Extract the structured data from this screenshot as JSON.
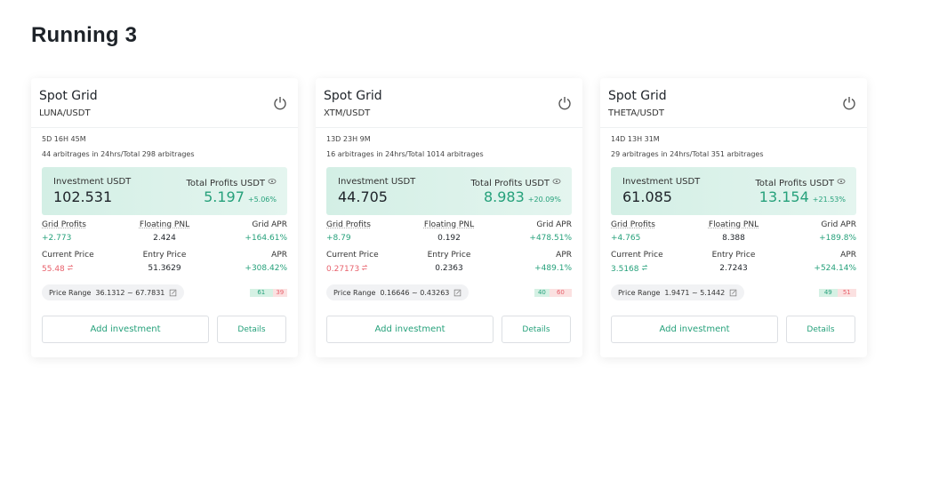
{
  "header": {
    "title": "Running 3"
  },
  "labels": {
    "investment": "Investment USDT",
    "total_profits": "Total Profits USDT",
    "grid_profits": "Grid Profits",
    "floating_pnl": "Floating PNL",
    "grid_apr": "Grid APR",
    "current_price": "Current Price",
    "entry_price": "Entry Price",
    "apr": "APR",
    "price_range": "Price Range",
    "add_investment": "Add investment",
    "details": "Details"
  },
  "cards": [
    {
      "title": "Spot Grid",
      "pair": "LUNA/USDT",
      "duration": "5D 16H 45M",
      "arbitrages": "44 arbitrages in 24hrs/Total 298 arbitrages",
      "investment": "102.531",
      "total_profits": "5.197",
      "total_profits_pct": "+5.06%",
      "grid_profits": "+2.773",
      "floating_pnl": "2.424",
      "grid_apr": "+164.61%",
      "current_price": "55.48",
      "current_price_color": "#e8616c",
      "entry_price": "51.3629",
      "apr": "+308.42%",
      "price_range": "36.1312 ~ 67.7831",
      "buy_ratio": 61,
      "sell_ratio": 39
    },
    {
      "title": "Spot Grid",
      "pair": "XTM/USDT",
      "duration": "13D 23H 9M",
      "arbitrages": "16 arbitrages in 24hrs/Total 1014 arbitrages",
      "investment": "44.705",
      "total_profits": "8.983",
      "total_profits_pct": "+20.09%",
      "grid_profits": "+8.79",
      "floating_pnl": "0.192",
      "grid_apr": "+478.51%",
      "current_price": "0.27173",
      "current_price_color": "#e8616c",
      "entry_price": "0.2363",
      "apr": "+489.1%",
      "price_range": "0.16646 ~ 0.43263",
      "buy_ratio": 40,
      "sell_ratio": 60
    },
    {
      "title": "Spot Grid",
      "pair": "THETA/USDT",
      "duration": "14D 13H 31M",
      "arbitrages": "29 arbitrages in 24hrs/Total 351 arbitrages",
      "investment": "61.085",
      "total_profits": "13.154",
      "total_profits_pct": "+21.53%",
      "grid_profits": "+4.765",
      "floating_pnl": "8.388",
      "grid_apr": "+189.8%",
      "current_price": "3.5168",
      "current_price_color": "#26a17b",
      "entry_price": "2.7243",
      "apr": "+524.14%",
      "price_range": "1.9471 ~ 5.1442",
      "buy_ratio": 49,
      "sell_ratio": 51
    }
  ]
}
